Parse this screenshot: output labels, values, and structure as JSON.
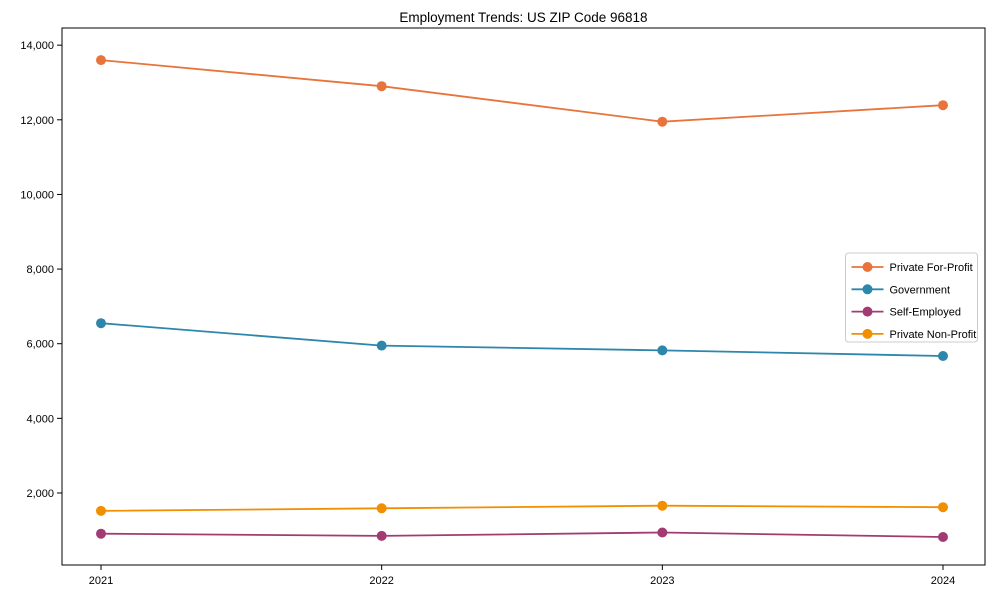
{
  "title": "Employment Trends: US ZIP Code 96818",
  "chart_data": {
    "type": "line",
    "title": "Employment Trends: US ZIP Code 96818",
    "x": [
      2021,
      2022,
      2023,
      2024
    ],
    "xtick_labels": [
      "2021",
      "2022",
      "2023",
      "2024"
    ],
    "series": [
      {
        "name": "Private For-Profit",
        "color": "#E8743B",
        "values": [
          13600,
          12900,
          11950,
          12390
        ]
      },
      {
        "name": "Government",
        "color": "#2E86AB",
        "values": [
          6550,
          5950,
          5820,
          5670
        ]
      },
      {
        "name": "Self-Employed",
        "color": "#A23B72",
        "values": [
          910,
          850,
          940,
          820
        ]
      },
      {
        "name": "Private Non-Profit",
        "color": "#F18F01",
        "values": [
          1520,
          1590,
          1660,
          1620
        ]
      }
    ],
    "xlabel": "",
    "ylabel": "",
    "ylim": [
      70,
      14460
    ],
    "yticks": [
      2000,
      4000,
      6000,
      8000,
      10000,
      12000,
      14000
    ],
    "ytick_labels": [
      "2,000",
      "4,000",
      "6,000",
      "8,000",
      "10,000",
      "12,000",
      "14,000"
    ],
    "grid": false,
    "marker": "circle",
    "legend_position": "center-right"
  },
  "style": {
    "spine_color": "#000000",
    "tick_color": "#000000",
    "legend_border": "#cccccc",
    "legend_background": "#ffffff",
    "plot_background": "#ffffff"
  }
}
